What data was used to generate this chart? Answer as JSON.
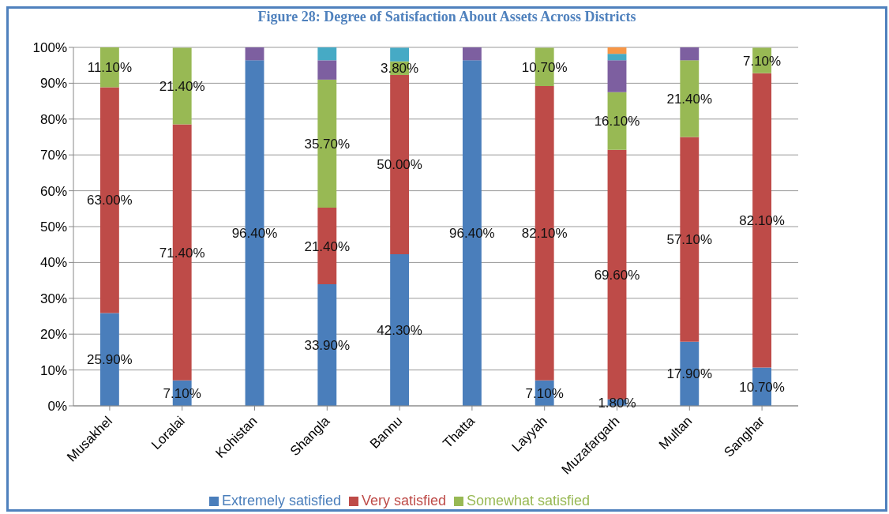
{
  "chart_data": {
    "type": "bar",
    "title": "Figure 28: Degree of Satisfaction About Assets Across Districts",
    "categories": [
      "Musakhel",
      "Loralai",
      "Kohistan",
      "Shangla",
      "Bannu",
      "Thatta",
      "Layyah",
      "Muzafargarh",
      "Multan",
      "Sanghar"
    ],
    "stacked": true,
    "ylim": [
      0,
      100
    ],
    "yticks": [
      {
        "value": 0,
        "label": "0%"
      },
      {
        "value": 10,
        "label": "10%"
      },
      {
        "value": 20,
        "label": "20%"
      },
      {
        "value": 30,
        "label": "30%"
      },
      {
        "value": 40,
        "label": "40%"
      },
      {
        "value": 50,
        "label": "50%"
      },
      {
        "value": 60,
        "label": "60%"
      },
      {
        "value": 70,
        "label": "70%"
      },
      {
        "value": 80,
        "label": "80%"
      },
      {
        "value": 90,
        "label": "90%"
      },
      {
        "value": 100,
        "label": "100%"
      }
    ],
    "grid": "y",
    "legend": "bottom",
    "series": [
      {
        "name": "Extremely satisfied",
        "color": "#4a7ebb",
        "values": [
          25.9,
          7.1,
          96.4,
          33.9,
          42.3,
          96.4,
          7.1,
          1.8,
          17.9,
          10.7
        ],
        "value_labels": [
          "25.90%",
          "7.10%",
          "96.40%",
          "33.90%",
          "42.30%",
          "96.40%",
          "7.10%",
          "1.80%",
          "17.90%",
          "10.70%"
        ]
      },
      {
        "name": "Very satisfied",
        "color": "#be4b48",
        "values": [
          63.0,
          71.4,
          null,
          21.4,
          50.0,
          null,
          82.1,
          69.6,
          57.1,
          82.1
        ],
        "value_labels": [
          "63.00%",
          "71.40%",
          null,
          "21.40%",
          "50.00%",
          null,
          "82.10%",
          "69.60%",
          "57.10%",
          "82.10%"
        ]
      },
      {
        "name": "Somewhat satisfied",
        "color": "#98b954",
        "values": [
          11.1,
          21.4,
          null,
          35.7,
          3.8,
          null,
          10.7,
          16.1,
          21.4,
          7.1
        ],
        "value_labels": [
          "11.10%",
          "21.40%",
          null,
          "35.70%",
          "3.80%",
          null,
          "10.70%",
          "16.10%",
          "21.40%",
          "7.10%"
        ]
      },
      {
        "color": "#7d5fa0",
        "values": [
          null,
          null,
          3.6,
          5.4,
          null,
          3.6,
          null,
          8.9,
          3.6,
          null
        ]
      },
      {
        "color": "#46aac5",
        "values": [
          null,
          null,
          null,
          3.6,
          3.8,
          null,
          null,
          1.8,
          null,
          null
        ]
      },
      {
        "color": "#f79646",
        "values": [
          null,
          null,
          null,
          null,
          null,
          null,
          null,
          1.8,
          null,
          null
        ]
      }
    ]
  }
}
